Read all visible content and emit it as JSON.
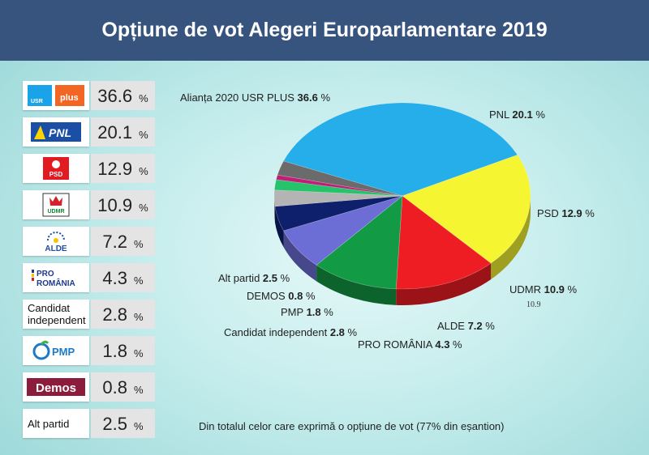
{
  "title": "Opțiune de vot Alegeri Europarlamentare 2019",
  "note": "Din totalul celor care exprimă o opțiune de vot (77% din eșantion)",
  "percent_sign": "%",
  "table": [
    {
      "logo_text": "USR",
      "logo_text2": "plus",
      "value": "36.6",
      "color": "#1aa3e8"
    },
    {
      "logo_text": "PNL",
      "value": "20.1",
      "color": "#1b4fa5"
    },
    {
      "logo_text": "PSD",
      "value": "12.9",
      "color": "#e21a22"
    },
    {
      "logo_text": "UDMR",
      "value": "10.9",
      "color": "#118a36"
    },
    {
      "logo_text": "ALDE",
      "value": "7.2",
      "color": "#1f4da0"
    },
    {
      "logo_text": "PRO",
      "logo_text2": "ROMÂNIA",
      "value": "4.3",
      "color": "#1e3a8c"
    },
    {
      "logo_text": "Candidat independent",
      "value": "2.8",
      "color": "#111111"
    },
    {
      "logo_text": "PMP",
      "value": "1.8",
      "color": "#1d7ac7"
    },
    {
      "logo_text": "Demos",
      "value": "0.8",
      "color": "#8b1c3b"
    },
    {
      "logo_text": "Alt partid",
      "value": "2.5",
      "color": "#111111"
    }
  ],
  "chart_data": {
    "type": "pie",
    "series": [
      {
        "name": "Alianța 2020 USR PLUS",
        "value": 36.6,
        "label": "36.6 %",
        "color": "#25aee9"
      },
      {
        "name": "PNL",
        "value": 20.1,
        "label": "20.1 %",
        "color": "#f5f531"
      },
      {
        "name": "PSD",
        "value": 12.9,
        "label": "12.9 %",
        "color": "#ee1d24"
      },
      {
        "name": "UDMR",
        "value": 10.9,
        "label": "10.9 %",
        "color": "#139a44"
      },
      {
        "name": "ALDE",
        "value": 7.2,
        "label": "7.2 %",
        "color": "#6c6ed6"
      },
      {
        "name": "PRO ROMÂNIA",
        "value": 4.3,
        "label": "4.3 %",
        "color": "#0e1f6b"
      },
      {
        "name": "Candidat independent",
        "value": 2.8,
        "label": "2.8 %",
        "color": "#b4b4b4"
      },
      {
        "name": "PMP",
        "value": 1.8,
        "label": "1.8 %",
        "color": "#25c46a"
      },
      {
        "name": "DEMOS",
        "value": 0.8,
        "label": "0.8 %",
        "color": "#c21b78"
      },
      {
        "name": "Alt partid",
        "value": 2.5,
        "label": "2.5 %",
        "color": "#6b6b6b"
      }
    ],
    "extra_annotation": "10.9"
  }
}
